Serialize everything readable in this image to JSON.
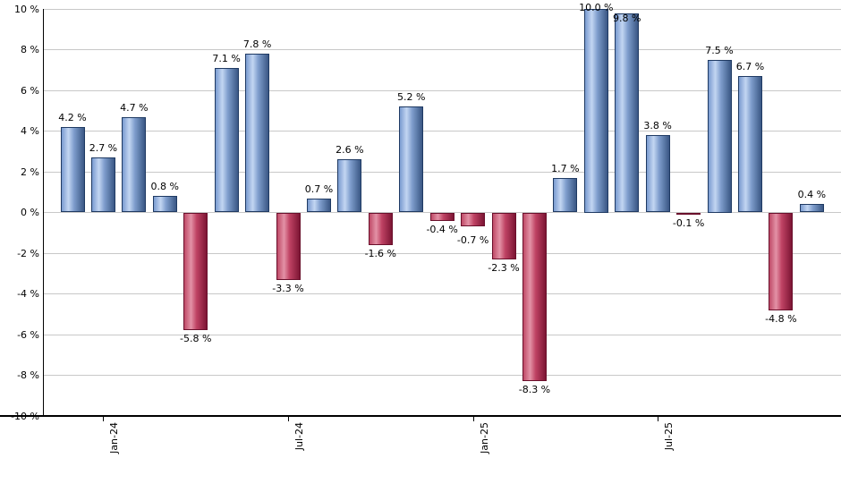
{
  "chart_data": {
    "type": "bar",
    "title": "",
    "xlabel": "",
    "ylabel": "",
    "ylim": [
      -10,
      10
    ],
    "grid": "horizontal",
    "values": [
      4.2,
      2.7,
      4.7,
      0.8,
      -5.8,
      7.1,
      7.8,
      -3.3,
      0.7,
      2.6,
      -1.6,
      5.2,
      -0.4,
      -0.7,
      -2.3,
      -8.3,
      1.7,
      10.0,
      9.8,
      3.8,
      -0.1,
      7.5,
      6.7,
      -4.8,
      0.4
    ],
    "labels": [
      "4.2 %",
      "2.7 %",
      "4.7 %",
      "0.8 %",
      "-5.8 %",
      "7.1 %",
      "7.8 %",
      "-3.3 %",
      "0.7 %",
      "2.6 %",
      "-1.6 %",
      "5.2 %",
      "-0.4 %",
      "-0.7 %",
      "-2.3 %",
      "-8.3 %",
      "1.7 %",
      "10.0 %",
      "9.8 %",
      "3.8 %",
      "-0.1 %",
      "7.5 %",
      "6.7 %",
      "-4.8 %",
      "0.4 %"
    ],
    "y_tick_labels": [
      "10 %",
      "8 %",
      "6 %",
      "4 %",
      "2 %",
      "0 %",
      "-2 %",
      "-4 %",
      "-6 %",
      "-8 %",
      "-10 %"
    ],
    "x_ticks": [
      {
        "label": "Jan-24",
        "bar_index": 1
      },
      {
        "label": "Jul-24",
        "bar_index": 7
      },
      {
        "label": "Jan-25",
        "bar_index": 13
      },
      {
        "label": "Jul-25",
        "bar_index": 19
      }
    ],
    "colors": {
      "positive_edge": "#7a9bd0",
      "positive_light": "#c3d6f2",
      "positive_mid": "#7e9dcc",
      "positive_dark": "#3a5784",
      "positive_border": "#1f3a63",
      "negative_edge": "#bf4a67",
      "negative_light": "#e392a6",
      "negative_mid": "#bf4263",
      "negative_dark": "#7c1534",
      "negative_border": "#6a0f2b",
      "gridline": "#c8c8c8",
      "axis": "#000000",
      "text": "#000000"
    }
  }
}
